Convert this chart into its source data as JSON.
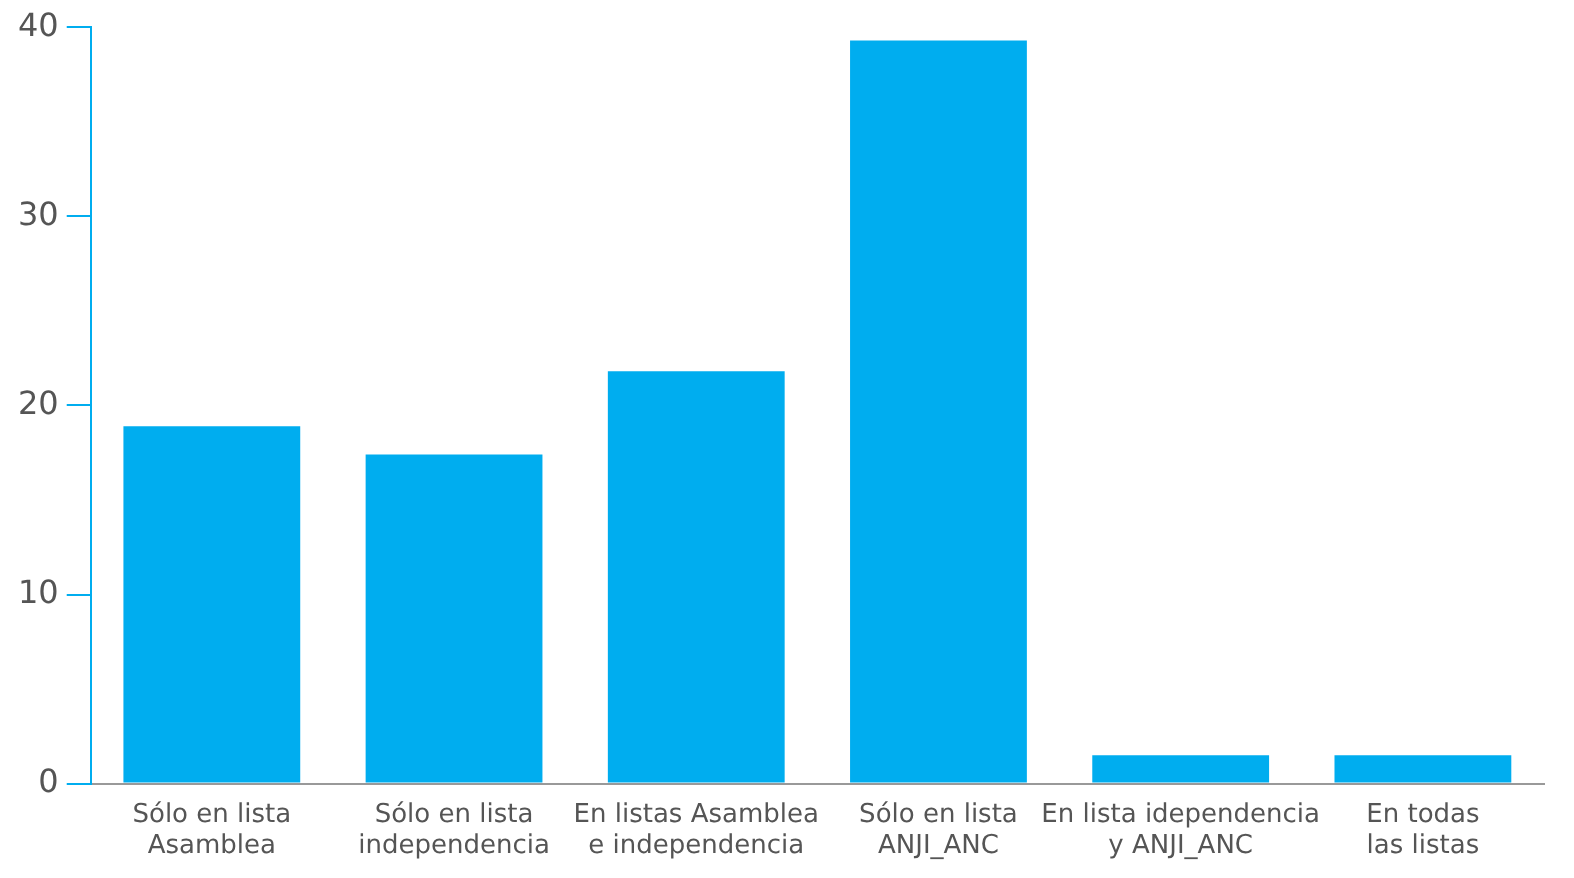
{
  "chart_data": {
    "type": "bar",
    "categories": [
      "Sólo en lista Asamblea",
      "Sólo en lista independencia",
      "En listas Asamblea e independencia",
      "Sólo en lista ANJI_ANC",
      "En lista idependencia y ANJI_ANC",
      "En todas las listas"
    ],
    "values": [
      18.9,
      17.4,
      21.8,
      39.3,
      1.5,
      1.5
    ],
    "color": "#00adef",
    "ylim": [
      0,
      40
    ],
    "yticks": [
      0,
      10,
      20,
      30,
      40
    ],
    "grid": false,
    "legend": false
  }
}
